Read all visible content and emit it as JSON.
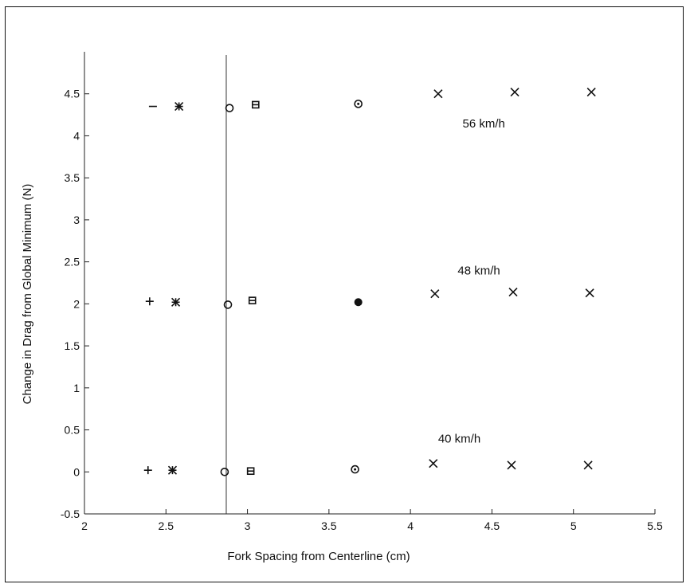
{
  "chart_data": {
    "type": "scatter",
    "title": "",
    "xlabel": "Fork Spacing from Centerline (cm)",
    "ylabel": "Change in Drag from Global Minimum (N)",
    "xlim": [
      2,
      5.5
    ],
    "ylim": [
      -0.5,
      5
    ],
    "xticks": [
      2,
      2.5,
      3,
      3.5,
      4,
      4.5,
      5,
      5.5
    ],
    "xtick_labels": [
      "2",
      "2.5",
      "3",
      "3.5",
      "4",
      "4.5",
      "5",
      "5.5"
    ],
    "yticks": [
      -0.5,
      0,
      0.5,
      1,
      1.5,
      2,
      2.5,
      3,
      3.5,
      4,
      4.5
    ],
    "ytick_labels": [
      "-0.5",
      "0",
      "0.5",
      "1",
      "1.5",
      "2",
      "2.5",
      "3",
      "3.5",
      "4",
      "4.5"
    ],
    "grid": false,
    "reference_line_x": 2.87,
    "annotations": [
      {
        "text": "56 km/h",
        "x": 4.45,
        "y": 4.1
      },
      {
        "text": "48 km/h",
        "x": 4.42,
        "y": 2.35
      },
      {
        "text": "40 km/h",
        "x": 4.3,
        "y": 0.35
      }
    ],
    "points": [
      {
        "x": 2.42,
        "y": 4.35,
        "marker": "dash"
      },
      {
        "x": 2.58,
        "y": 4.35,
        "marker": "asterisk"
      },
      {
        "x": 2.89,
        "y": 4.33,
        "marker": "circle"
      },
      {
        "x": 3.05,
        "y": 4.37,
        "marker": "square"
      },
      {
        "x": 3.68,
        "y": 4.38,
        "marker": "dotcircle"
      },
      {
        "x": 4.17,
        "y": 4.5,
        "marker": "x"
      },
      {
        "x": 4.64,
        "y": 4.52,
        "marker": "x"
      },
      {
        "x": 5.11,
        "y": 4.52,
        "marker": "x"
      },
      {
        "x": 2.4,
        "y": 2.03,
        "marker": "plus"
      },
      {
        "x": 2.56,
        "y": 2.02,
        "marker": "asterisk"
      },
      {
        "x": 2.88,
        "y": 1.99,
        "marker": "circle"
      },
      {
        "x": 3.03,
        "y": 2.04,
        "marker": "square"
      },
      {
        "x": 3.68,
        "y": 2.02,
        "marker": "dot"
      },
      {
        "x": 4.15,
        "y": 2.12,
        "marker": "x"
      },
      {
        "x": 4.63,
        "y": 2.14,
        "marker": "x"
      },
      {
        "x": 5.1,
        "y": 2.13,
        "marker": "x"
      },
      {
        "x": 2.39,
        "y": 0.02,
        "marker": "plus"
      },
      {
        "x": 2.54,
        "y": 0.02,
        "marker": "asterisk"
      },
      {
        "x": 2.86,
        "y": 0.0,
        "marker": "circle"
      },
      {
        "x": 3.02,
        "y": 0.01,
        "marker": "square"
      },
      {
        "x": 3.66,
        "y": 0.03,
        "marker": "dotcircle"
      },
      {
        "x": 4.14,
        "y": 0.1,
        "marker": "x"
      },
      {
        "x": 4.62,
        "y": 0.08,
        "marker": "x"
      },
      {
        "x": 5.09,
        "y": 0.08,
        "marker": "x"
      }
    ]
  }
}
